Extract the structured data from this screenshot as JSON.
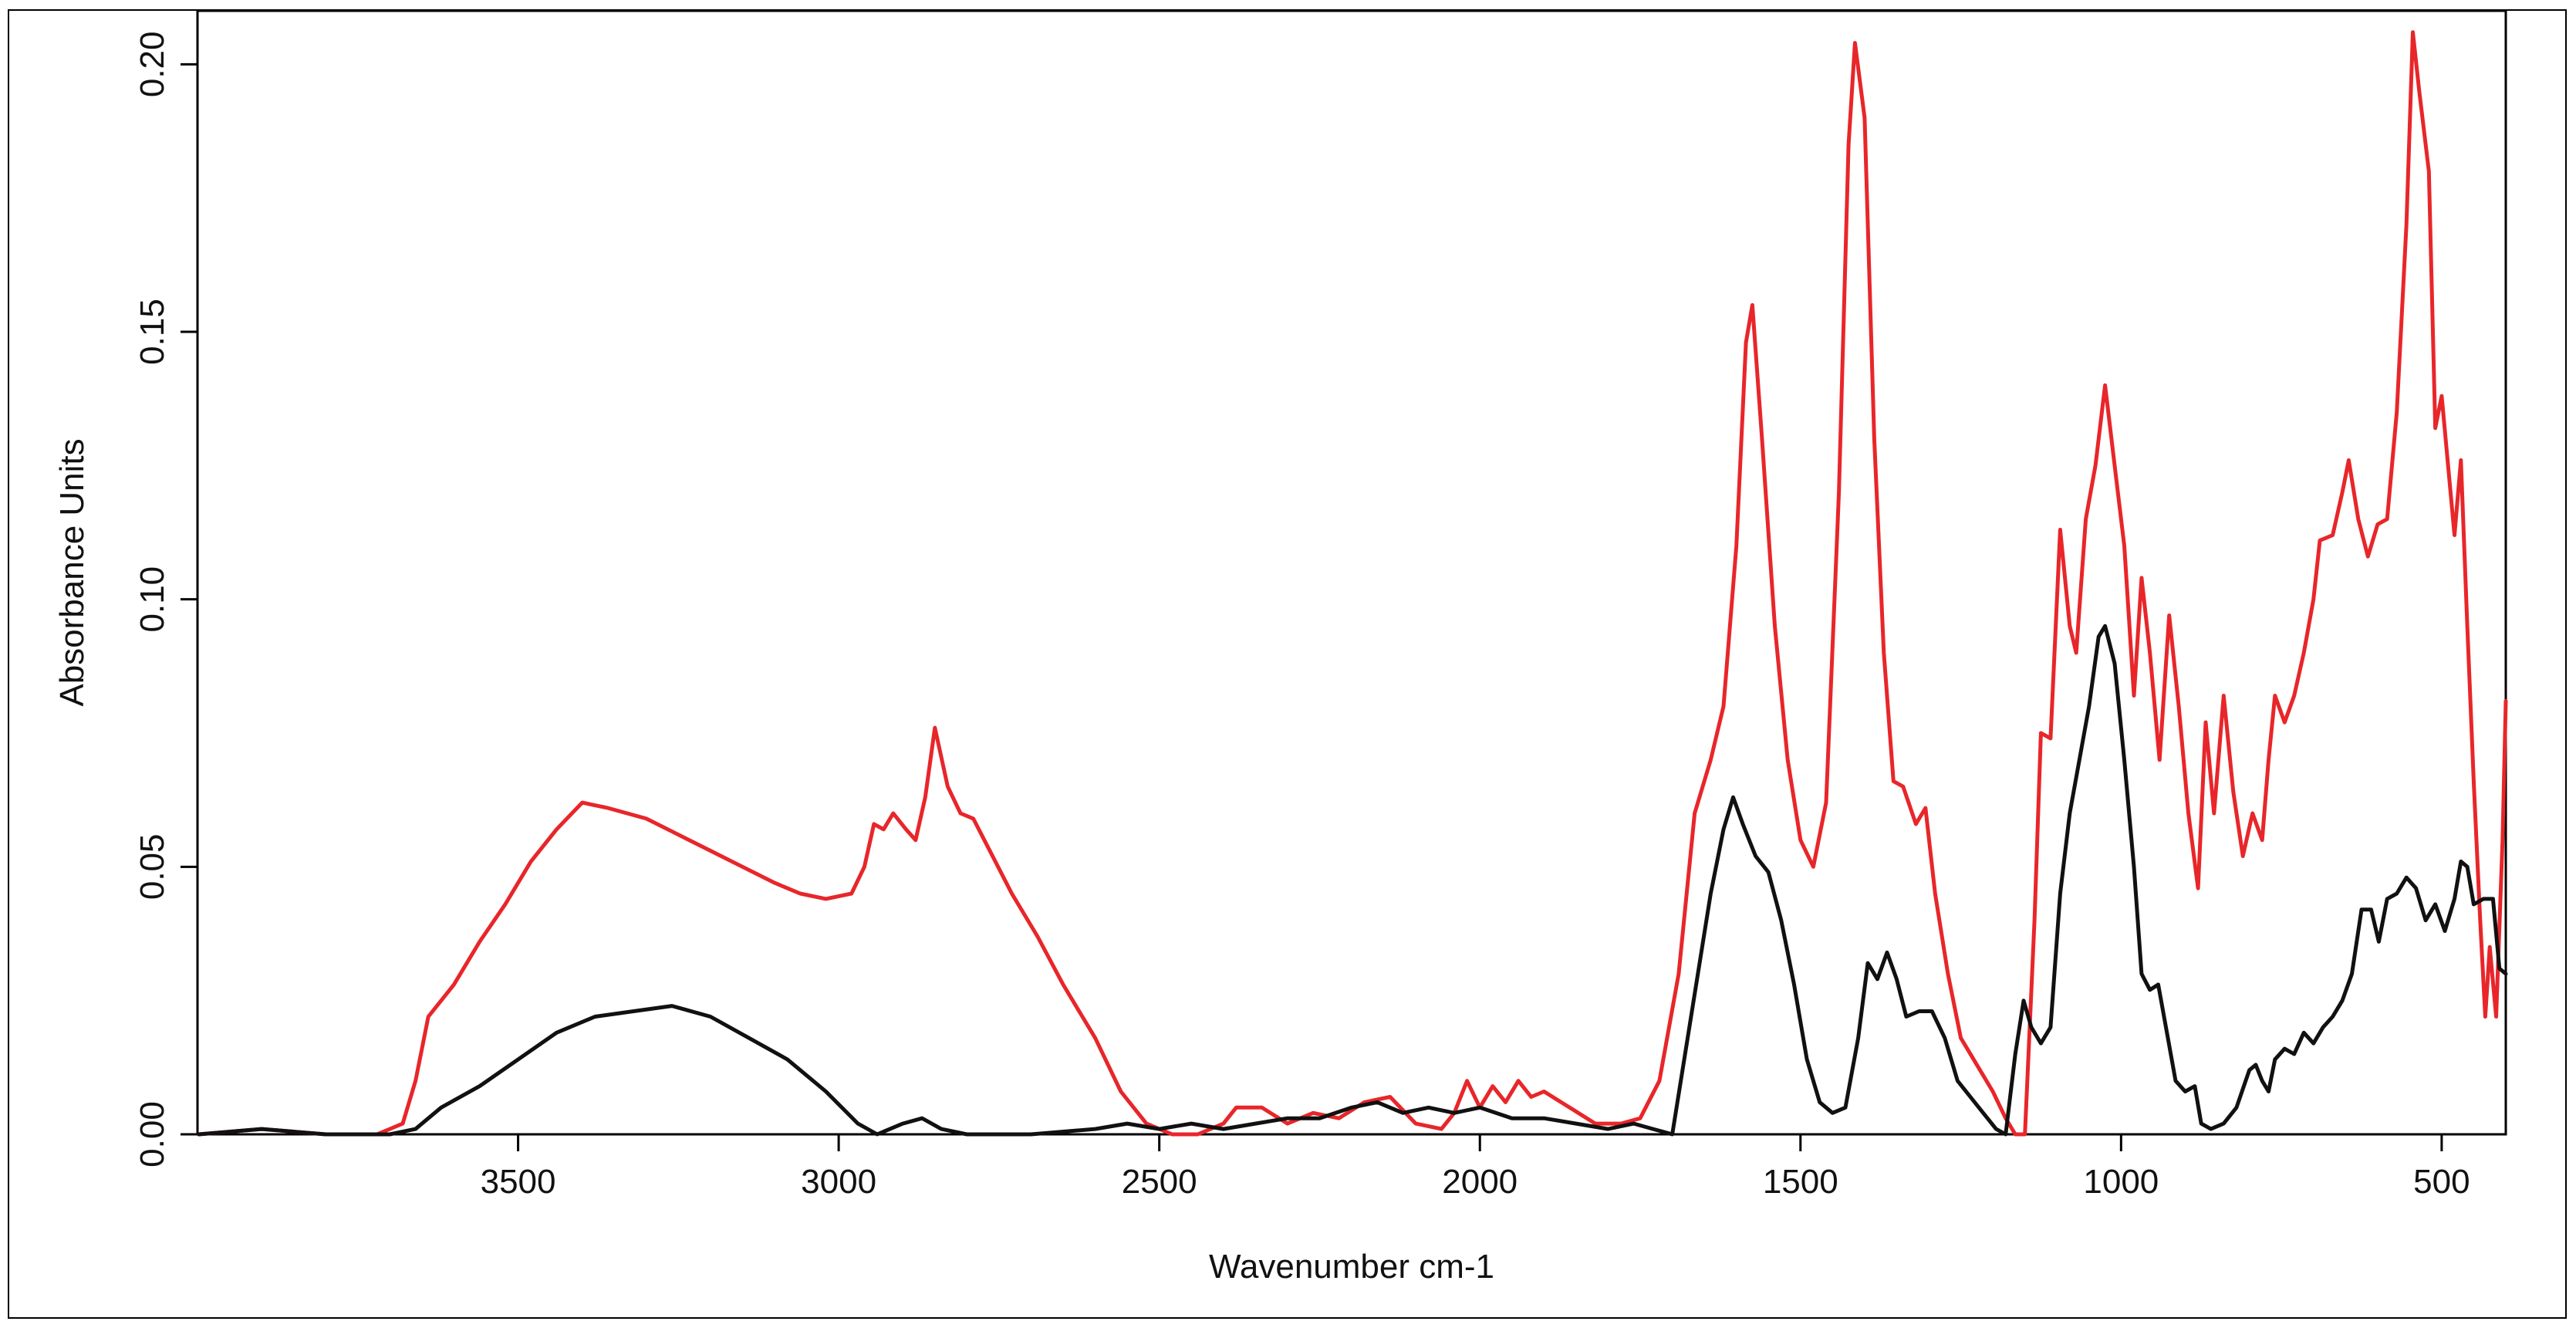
{
  "chart_data": {
    "type": "line",
    "title": "",
    "xlabel": "Wavenumber cm-1",
    "ylabel": "Absorbance Units",
    "xlim": [
      4000,
      400
    ],
    "ylim": [
      0,
      0.21
    ],
    "x_reversed": true,
    "x_ticks": [
      3500,
      3000,
      2500,
      2000,
      1500,
      1000,
      500
    ],
    "y_ticks": [
      0.0,
      0.05,
      0.1,
      0.15,
      0.2
    ],
    "x_tick_labels": [
      "3500",
      "3000",
      "2500",
      "2000",
      "1500",
      "1000",
      "500"
    ],
    "y_tick_labels": [
      "0.00",
      "0.05",
      "0.10",
      "0.15",
      "0.20"
    ],
    "grid": false,
    "legend": "none",
    "series": [
      {
        "color": "#e8262a",
        "points": [
          [
            3998,
            0.0
          ],
          [
            3900,
            0.001
          ],
          [
            3800,
            0.0
          ],
          [
            3720,
            0.0
          ],
          [
            3680,
            0.002
          ],
          [
            3660,
            0.01
          ],
          [
            3640,
            0.022
          ],
          [
            3600,
            0.028
          ],
          [
            3560,
            0.036
          ],
          [
            3520,
            0.043
          ],
          [
            3480,
            0.051
          ],
          [
            3440,
            0.057
          ],
          [
            3400,
            0.062
          ],
          [
            3360,
            0.061
          ],
          [
            3300,
            0.059
          ],
          [
            3250,
            0.056
          ],
          [
            3200,
            0.053
          ],
          [
            3150,
            0.05
          ],
          [
            3100,
            0.047
          ],
          [
            3060,
            0.045
          ],
          [
            3020,
            0.044
          ],
          [
            2980,
            0.045
          ],
          [
            2960,
            0.05
          ],
          [
            2945,
            0.058
          ],
          [
            2930,
            0.057
          ],
          [
            2915,
            0.06
          ],
          [
            2895,
            0.057
          ],
          [
            2880,
            0.055
          ],
          [
            2865,
            0.063
          ],
          [
            2850,
            0.076
          ],
          [
            2830,
            0.065
          ],
          [
            2810,
            0.06
          ],
          [
            2790,
            0.059
          ],
          [
            2760,
            0.052
          ],
          [
            2730,
            0.045
          ],
          [
            2690,
            0.037
          ],
          [
            2650,
            0.028
          ],
          [
            2600,
            0.018
          ],
          [
            2560,
            0.008
          ],
          [
            2520,
            0.002
          ],
          [
            2480,
            0.0
          ],
          [
            2440,
            0.0
          ],
          [
            2400,
            0.002
          ],
          [
            2380,
            0.005
          ],
          [
            2340,
            0.005
          ],
          [
            2300,
            0.002
          ],
          [
            2260,
            0.004
          ],
          [
            2220,
            0.003
          ],
          [
            2180,
            0.006
          ],
          [
            2140,
            0.007
          ],
          [
            2100,
            0.002
          ],
          [
            2060,
            0.001
          ],
          [
            2040,
            0.004
          ],
          [
            2020,
            0.01
          ],
          [
            2000,
            0.005
          ],
          [
            1980,
            0.009
          ],
          [
            1960,
            0.006
          ],
          [
            1940,
            0.01
          ],
          [
            1920,
            0.007
          ],
          [
            1900,
            0.008
          ],
          [
            1860,
            0.005
          ],
          [
            1820,
            0.002
          ],
          [
            1780,
            0.002
          ],
          [
            1750,
            0.003
          ],
          [
            1720,
            0.01
          ],
          [
            1690,
            0.03
          ],
          [
            1665,
            0.06
          ],
          [
            1640,
            0.07
          ],
          [
            1620,
            0.08
          ],
          [
            1600,
            0.11
          ],
          [
            1585,
            0.148
          ],
          [
            1575,
            0.155
          ],
          [
            1560,
            0.13
          ],
          [
            1540,
            0.095
          ],
          [
            1520,
            0.07
          ],
          [
            1500,
            0.055
          ],
          [
            1480,
            0.05
          ],
          [
            1460,
            0.062
          ],
          [
            1440,
            0.12
          ],
          [
            1425,
            0.185
          ],
          [
            1415,
            0.204
          ],
          [
            1400,
            0.19
          ],
          [
            1385,
            0.13
          ],
          [
            1370,
            0.09
          ],
          [
            1355,
            0.066
          ],
          [
            1340,
            0.065
          ],
          [
            1320,
            0.058
          ],
          [
            1305,
            0.061
          ],
          [
            1290,
            0.045
          ],
          [
            1270,
            0.03
          ],
          [
            1250,
            0.018
          ],
          [
            1220,
            0.012
          ],
          [
            1200,
            0.008
          ],
          [
            1180,
            0.003
          ],
          [
            1165,
            0.0
          ],
          [
            1150,
            0.0
          ],
          [
            1135,
            0.04
          ],
          [
            1125,
            0.075
          ],
          [
            1110,
            0.074
          ],
          [
            1095,
            0.113
          ],
          [
            1080,
            0.095
          ],
          [
            1070,
            0.09
          ],
          [
            1055,
            0.115
          ],
          [
            1040,
            0.125
          ],
          [
            1025,
            0.14
          ],
          [
            1010,
            0.125
          ],
          [
            995,
            0.11
          ],
          [
            980,
            0.082
          ],
          [
            968,
            0.104
          ],
          [
            955,
            0.09
          ],
          [
            940,
            0.07
          ],
          [
            925,
            0.097
          ],
          [
            910,
            0.08
          ],
          [
            895,
            0.06
          ],
          [
            880,
            0.046
          ],
          [
            868,
            0.077
          ],
          [
            855,
            0.06
          ],
          [
            840,
            0.082
          ],
          [
            825,
            0.064
          ],
          [
            810,
            0.052
          ],
          [
            795,
            0.06
          ],
          [
            780,
            0.055
          ],
          [
            770,
            0.07
          ],
          [
            760,
            0.082
          ],
          [
            745,
            0.077
          ],
          [
            730,
            0.082
          ],
          [
            715,
            0.09
          ],
          [
            700,
            0.1
          ],
          [
            690,
            0.111
          ],
          [
            670,
            0.112
          ],
          [
            655,
            0.12
          ],
          [
            645,
            0.126
          ],
          [
            630,
            0.115
          ],
          [
            615,
            0.108
          ],
          [
            600,
            0.114
          ],
          [
            585,
            0.115
          ],
          [
            570,
            0.135
          ],
          [
            555,
            0.17
          ],
          [
            545,
            0.206
          ],
          [
            535,
            0.195
          ],
          [
            520,
            0.18
          ],
          [
            510,
            0.132
          ],
          [
            500,
            0.138
          ],
          [
            490,
            0.125
          ],
          [
            480,
            0.112
          ],
          [
            470,
            0.126
          ],
          [
            460,
            0.095
          ],
          [
            450,
            0.066
          ],
          [
            440,
            0.04
          ],
          [
            432,
            0.022
          ],
          [
            425,
            0.035
          ],
          [
            415,
            0.022
          ],
          [
            405,
            0.055
          ],
          [
            400,
            0.081
          ]
        ]
      },
      {
        "color": "#111111",
        "points": [
          [
            3998,
            0.0
          ],
          [
            3900,
            0.001
          ],
          [
            3800,
            0.0
          ],
          [
            3700,
            0.0
          ],
          [
            3660,
            0.001
          ],
          [
            3620,
            0.005
          ],
          [
            3560,
            0.009
          ],
          [
            3500,
            0.014
          ],
          [
            3440,
            0.019
          ],
          [
            3380,
            0.022
          ],
          [
            3320,
            0.023
          ],
          [
            3260,
            0.024
          ],
          [
            3200,
            0.022
          ],
          [
            3140,
            0.018
          ],
          [
            3080,
            0.014
          ],
          [
            3020,
            0.008
          ],
          [
            2970,
            0.002
          ],
          [
            2940,
            0.0
          ],
          [
            2900,
            0.002
          ],
          [
            2870,
            0.003
          ],
          [
            2840,
            0.001
          ],
          [
            2800,
            0.0
          ],
          [
            2700,
            0.0
          ],
          [
            2600,
            0.001
          ],
          [
            2550,
            0.002
          ],
          [
            2500,
            0.001
          ],
          [
            2450,
            0.002
          ],
          [
            2400,
            0.001
          ],
          [
            2350,
            0.002
          ],
          [
            2300,
            0.003
          ],
          [
            2250,
            0.003
          ],
          [
            2200,
            0.005
          ],
          [
            2160,
            0.006
          ],
          [
            2120,
            0.004
          ],
          [
            2080,
            0.005
          ],
          [
            2040,
            0.004
          ],
          [
            2000,
            0.005
          ],
          [
            1950,
            0.003
          ],
          [
            1900,
            0.003
          ],
          [
            1850,
            0.002
          ],
          [
            1800,
            0.001
          ],
          [
            1760,
            0.002
          ],
          [
            1730,
            0.001
          ],
          [
            1700,
            0.0
          ],
          [
            1680,
            0.015
          ],
          [
            1660,
            0.03
          ],
          [
            1640,
            0.045
          ],
          [
            1620,
            0.057
          ],
          [
            1605,
            0.063
          ],
          [
            1590,
            0.058
          ],
          [
            1570,
            0.052
          ],
          [
            1550,
            0.049
          ],
          [
            1530,
            0.04
          ],
          [
            1510,
            0.028
          ],
          [
            1490,
            0.014
          ],
          [
            1470,
            0.006
          ],
          [
            1450,
            0.004
          ],
          [
            1430,
            0.005
          ],
          [
            1410,
            0.018
          ],
          [
            1395,
            0.032
          ],
          [
            1380,
            0.029
          ],
          [
            1365,
            0.034
          ],
          [
            1350,
            0.029
          ],
          [
            1335,
            0.022
          ],
          [
            1315,
            0.023
          ],
          [
            1295,
            0.023
          ],
          [
            1275,
            0.018
          ],
          [
            1255,
            0.01
          ],
          [
            1235,
            0.007
          ],
          [
            1215,
            0.004
          ],
          [
            1195,
            0.001
          ],
          [
            1180,
            0.0
          ],
          [
            1165,
            0.015
          ],
          [
            1152,
            0.025
          ],
          [
            1140,
            0.02
          ],
          [
            1125,
            0.017
          ],
          [
            1110,
            0.02
          ],
          [
            1095,
            0.045
          ],
          [
            1080,
            0.06
          ],
          [
            1065,
            0.07
          ],
          [
            1050,
            0.08
          ],
          [
            1035,
            0.093
          ],
          [
            1025,
            0.095
          ],
          [
            1010,
            0.088
          ],
          [
            995,
            0.07
          ],
          [
            980,
            0.05
          ],
          [
            968,
            0.03
          ],
          [
            955,
            0.027
          ],
          [
            942,
            0.028
          ],
          [
            930,
            0.02
          ],
          [
            915,
            0.01
          ],
          [
            900,
            0.008
          ],
          [
            885,
            0.009
          ],
          [
            875,
            0.002
          ],
          [
            860,
            0.001
          ],
          [
            840,
            0.002
          ],
          [
            820,
            0.005
          ],
          [
            800,
            0.012
          ],
          [
            790,
            0.013
          ],
          [
            780,
            0.01
          ],
          [
            770,
            0.008
          ],
          [
            760,
            0.014
          ],
          [
            745,
            0.016
          ],
          [
            730,
            0.015
          ],
          [
            715,
            0.019
          ],
          [
            700,
            0.017
          ],
          [
            685,
            0.02
          ],
          [
            670,
            0.022
          ],
          [
            655,
            0.025
          ],
          [
            640,
            0.03
          ],
          [
            625,
            0.042
          ],
          [
            610,
            0.042
          ],
          [
            598,
            0.036
          ],
          [
            585,
            0.044
          ],
          [
            570,
            0.045
          ],
          [
            555,
            0.048
          ],
          [
            540,
            0.046
          ],
          [
            525,
            0.04
          ],
          [
            510,
            0.043
          ],
          [
            495,
            0.038
          ],
          [
            480,
            0.044
          ],
          [
            470,
            0.051
          ],
          [
            460,
            0.05
          ],
          [
            450,
            0.043
          ],
          [
            435,
            0.044
          ],
          [
            420,
            0.044
          ],
          [
            410,
            0.031
          ],
          [
            400,
            0.03
          ]
        ]
      }
    ]
  }
}
